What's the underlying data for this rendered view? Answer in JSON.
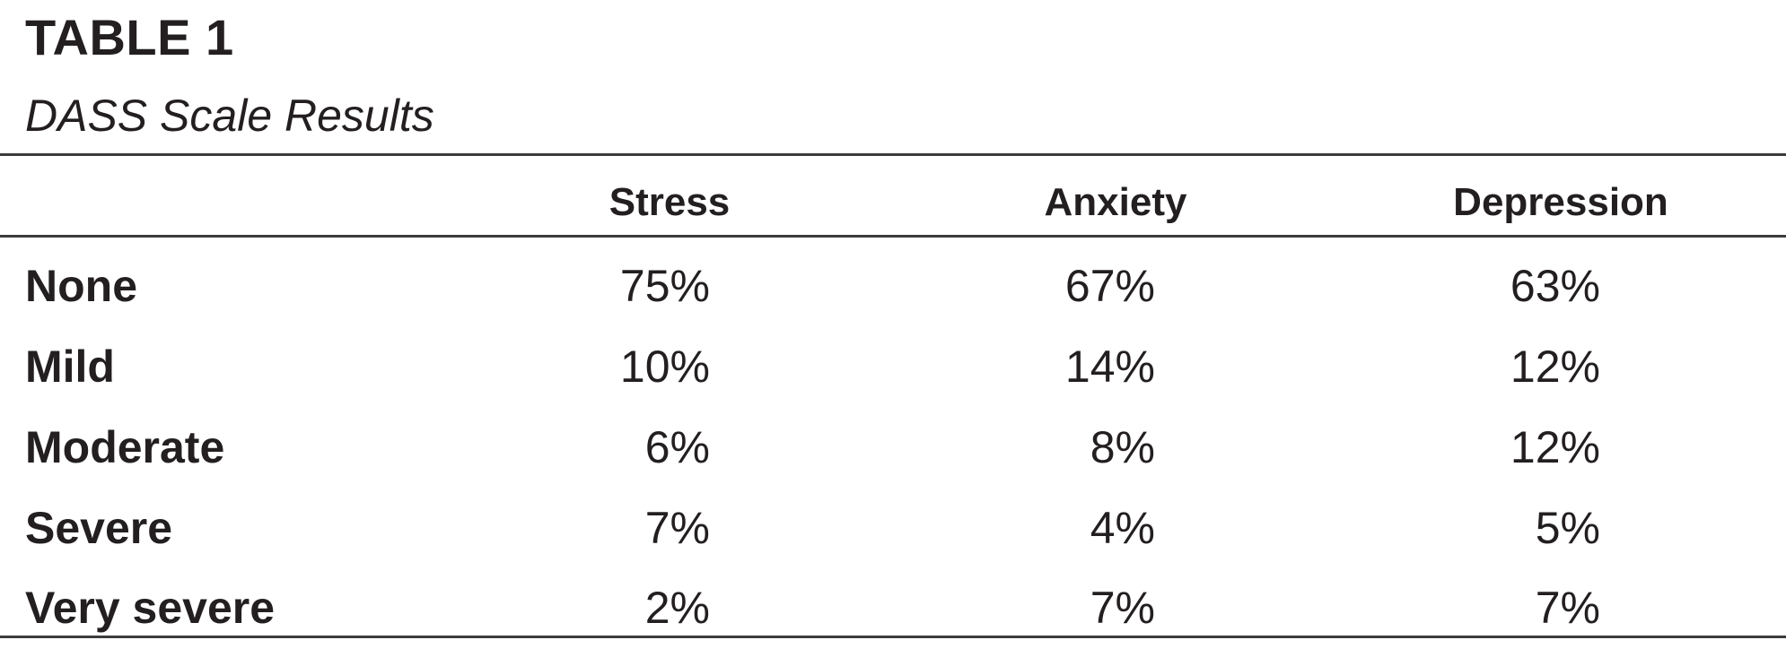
{
  "table": {
    "number": "TABLE 1",
    "title": "DASS Scale Results",
    "columns": [
      "Stress",
      "Anxiety",
      "Depression"
    ],
    "rows": [
      {
        "label": "None",
        "values": [
          "75%",
          "67%",
          "63%"
        ]
      },
      {
        "label": "Mild",
        "values": [
          "10%",
          "14%",
          "12%"
        ]
      },
      {
        "label": "Moderate",
        "values": [
          "6%",
          "8%",
          "12%"
        ]
      },
      {
        "label": "Severe",
        "values": [
          "7%",
          "4%",
          "5%"
        ]
      },
      {
        "label": "Very severe",
        "values": [
          "2%",
          "7%",
          "7%"
        ]
      }
    ]
  }
}
